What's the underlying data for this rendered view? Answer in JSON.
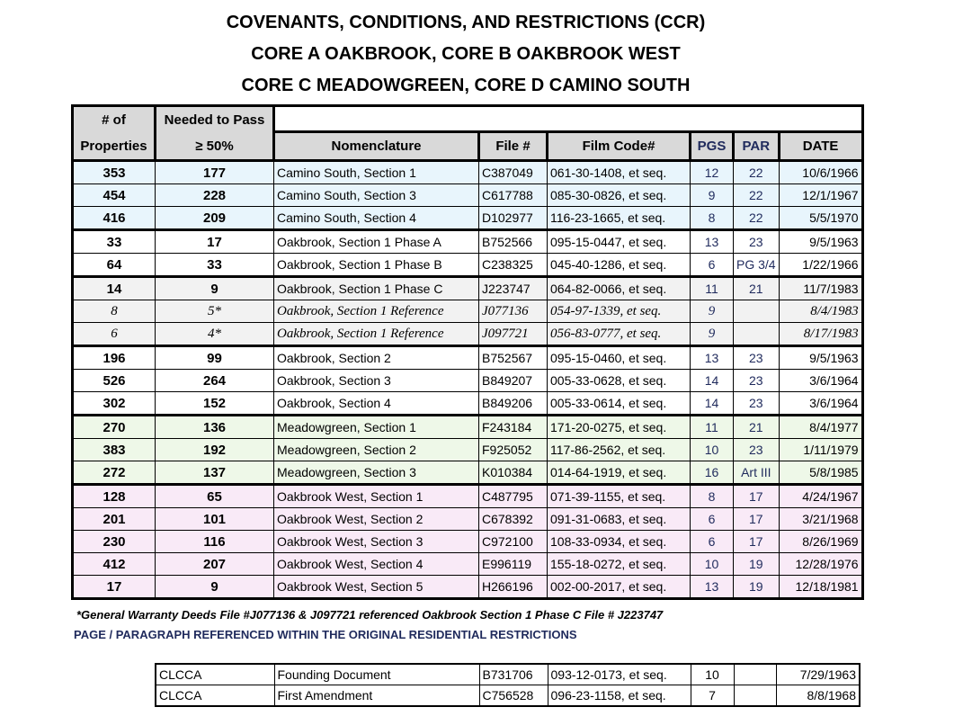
{
  "title_lines": [
    "COVENANTS, CONDITIONS, AND RESTRICTIONS (CCR)",
    "CORE A OAKBROOK, CORE B OAKBROOK WEST",
    "CORE C MEADOWGREEN, CORE D CAMINO SOUTH"
  ],
  "headers": {
    "props_1": "# of",
    "props_2": "Properties",
    "needed_1": "Needed to Pass",
    "needed_2": "≥ 50%",
    "nomenclature": "Nomenclature",
    "file": "File #",
    "film": "Film Code#",
    "pgs": "PGS",
    "par": "PAR",
    "date": "DATE"
  },
  "colors": {
    "camino": "#e8f5fc",
    "oakbrook": "#ffffff",
    "phase_c": "#f2f2f2",
    "meadowgreen": "#eef8e8",
    "oakbrook_west": "#f9eaf7",
    "header": "#d9d9d9",
    "navy": "#1f2a5c"
  },
  "groups": [
    {
      "color": "#e8f5fc",
      "rows": [
        [
          "353",
          "177",
          "Camino South, Section 1",
          "C387049",
          "061-30-1408, et seq.",
          "12",
          "22",
          "10/6/1966"
        ],
        [
          "454",
          "228",
          "Camino South, Section 3",
          "C617788",
          "085-30-0826, et seq.",
          "9",
          "22",
          "12/1/1967"
        ],
        [
          "416",
          "209",
          "Camino South, Section 4",
          "D102977",
          "116-23-1665, et seq.",
          "8",
          "22",
          "5/5/1970"
        ]
      ]
    },
    {
      "color": "#ffffff",
      "rows": [
        [
          "33",
          "17",
          "Oakbrook, Section 1 Phase A",
          "B752566",
          "095-15-0447, et seq.",
          "13",
          "23",
          "9/5/1963"
        ],
        [
          "64",
          "33",
          "Oakbrook, Section 1 Phase B",
          "C238325",
          "045-40-1286, et seq.",
          "6",
          "PG 3/4",
          "1/22/1966"
        ]
      ]
    },
    {
      "color": "#f2f2f2",
      "rows": [
        [
          "14",
          "9",
          "Oakbrook, Section 1 Phase C",
          "J223747",
          "064-82-0066, et seq.",
          "11",
          "21",
          "11/7/1983"
        ],
        [
          "8",
          "5*",
          "Oakbrook, Section 1 Reference",
          "J077136",
          "054-97-1339, et seq.",
          "9",
          "",
          "8/4/1983"
        ],
        [
          "6",
          "4*",
          "Oakbrook, Section 1 Reference",
          "J097721",
          "056-83-0777, et seq.",
          "9",
          "",
          "8/17/1983"
        ]
      ],
      "italic_rows": [
        1,
        2
      ]
    },
    {
      "color": "#ffffff",
      "rows": [
        [
          "196",
          "99",
          "Oakbrook, Section 2",
          "B752567",
          "095-15-0460, et seq.",
          "13",
          "23",
          "9/5/1963"
        ],
        [
          "526",
          "264",
          "Oakbrook, Section 3",
          "B849207",
          "005-33-0628, et seq.",
          "14",
          "23",
          "3/6/1964"
        ],
        [
          "302",
          "152",
          "Oakbrook, Section 4",
          "B849206",
          "005-33-0614, et seq.",
          "14",
          "23",
          "3/6/1964"
        ]
      ]
    },
    {
      "color": "#eef8e8",
      "rows": [
        [
          "270",
          "136",
          "Meadowgreen, Section 1",
          "F243184",
          "171-20-0275, et seq.",
          "11",
          "21",
          "8/4/1977"
        ],
        [
          "383",
          "192",
          "Meadowgreen, Section 2",
          "F925052",
          "117-86-2562, et seq.",
          "10",
          "23",
          "1/11/1979"
        ],
        [
          "272",
          "137",
          "Meadowgreen, Section 3",
          "K010384",
          "014-64-1919, et seq.",
          "16",
          "Art III",
          "5/8/1985"
        ]
      ]
    },
    {
      "color": "#f9eaf7",
      "rows": [
        [
          "128",
          "65",
          "Oakbrook West, Section 1",
          "C487795",
          "071-39-1155, et seq.",
          "8",
          "17",
          "4/24/1967"
        ],
        [
          "201",
          "101",
          "Oakbrook West, Section 2",
          "C678392",
          "091-31-0683, et seq.",
          "6",
          "17",
          "3/21/1968"
        ],
        [
          "230",
          "116",
          "Oakbrook West, Section 3",
          "C972100",
          "108-33-0934, et seq.",
          "6",
          "17",
          "8/26/1969"
        ],
        [
          "412",
          "207",
          "Oakbrook West, Section 4",
          "E996119",
          "155-18-0272, et seq.",
          "10",
          "19",
          "12/28/1976"
        ],
        [
          "17",
          "9",
          "Oakbrook West, Section 5",
          "H266196",
          "002-00-2017, et seq.",
          "13",
          "19",
          "12/18/1981"
        ]
      ]
    }
  ],
  "footnote": "*General Warranty Deeds File #J077136 & J097721 referenced Oakbrook Section 1 Phase C File # J223747",
  "legend_note": "PAGE / PARAGRAPH REFERENCED WITHIN THE ORIGINAL RESIDENTIAL RESTRICTIONS",
  "reference_rows": [
    [
      "CLCCA",
      "Founding Document",
      "B731706",
      "093-12-0173, et seq.",
      "10",
      "",
      "7/29/1963"
    ],
    [
      "CLCCA",
      "First Amendment",
      "C756528",
      "096-23-1158, et seq.",
      "7",
      "",
      "8/8/1968"
    ]
  ]
}
